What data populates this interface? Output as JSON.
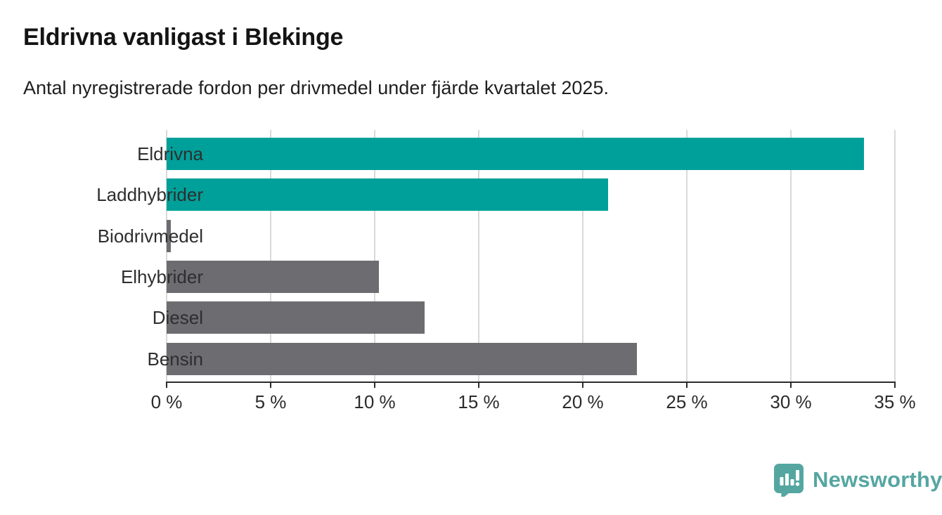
{
  "header": {
    "title": "Eldrivna vanligast i Blekinge",
    "subtitle": "Antal nyregistrerade fordon per drivmedel under fjärde kvartalet 2025."
  },
  "chart_data": {
    "type": "bar",
    "orientation": "horizontal",
    "title": "Eldrivna vanligast i Blekinge",
    "subtitle": "Antal nyregistrerade fordon per drivmedel under fjärde kvartalet 2025.",
    "categories": [
      "Eldrivna",
      "Laddhybrider",
      "Biodrivmedel",
      "Elhybrider",
      "Diesel",
      "Bensin"
    ],
    "values": [
      33.5,
      21.2,
      0.2,
      10.2,
      12.4,
      22.6
    ],
    "unit": "%",
    "xlim": [
      0,
      35
    ],
    "x_ticks": [
      0,
      5,
      10,
      15,
      20,
      25,
      30,
      35
    ],
    "x_tick_suffix": " %",
    "xlabel": "",
    "ylabel": "",
    "grid": "vertical",
    "legend": "none",
    "bar_colors": [
      "#00a09a",
      "#00a09a",
      "#6d6d71",
      "#6d6d71",
      "#6d6d71",
      "#6d6d71"
    ]
  },
  "colors": {
    "accent_teal": "#00a09a",
    "neutral_gray": "#6d6d71",
    "axis": "#2b2b2b",
    "gridline": "#d9d9d9",
    "brand_teal": "#55a6a1"
  },
  "footer": {
    "brand": "Newsworthy",
    "brand_icon": "bar-chart-speech-bubble-icon"
  }
}
